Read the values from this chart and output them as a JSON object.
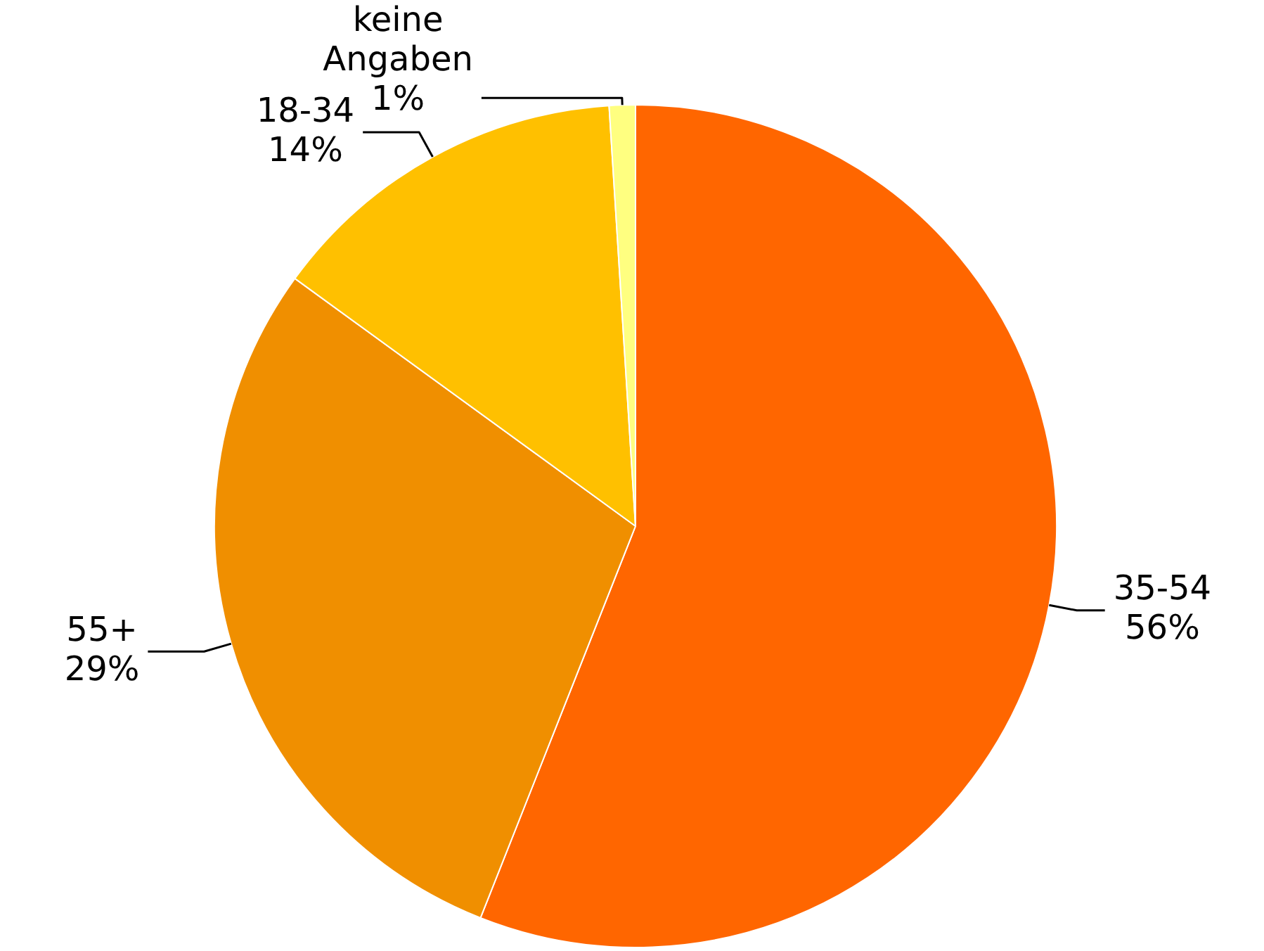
{
  "chart_data": {
    "type": "pie",
    "categories": [
      "35-54",
      "55+",
      "18-34",
      "keine Angaben"
    ],
    "values": [
      56,
      29,
      14,
      1
    ],
    "value_labels": [
      "56%",
      "29%",
      "14%",
      "1%"
    ],
    "colors": [
      "#ff6600",
      "#f08f00",
      "#ffc000",
      "#ffff80"
    ],
    "legend": false
  }
}
